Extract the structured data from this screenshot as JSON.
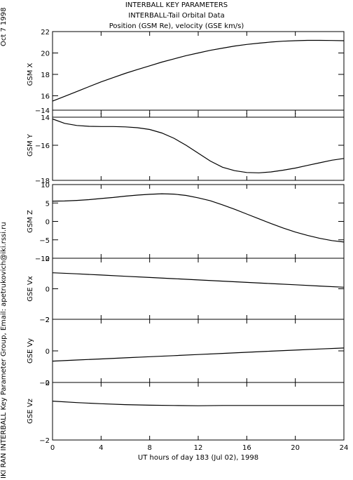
{
  "titles": [
    "INTERBALL KEY PARAMETERS",
    "INTERBALL-Tail Orbital Data",
    "Position (GSM Re), velocity (GSE km/s)"
  ],
  "side_date": "Oct  7 1998",
  "side_credit": "IKI RAN INTERBALL Key Parameter Group, Email: apetrukovich@iki.rssi.ru",
  "chart_data": {
    "type": "line",
    "xlabel": "UT hours of day 183 (Jul 02), 1998",
    "xlim": [
      0,
      24
    ],
    "xticks": [
      0,
      4,
      8,
      12,
      16,
      20,
      24
    ],
    "panels": [
      {
        "ylabel": "GSM X",
        "ylim": [
          14,
          22
        ],
        "yticks": [
          14,
          16,
          18,
          20,
          22
        ],
        "x": [
          0,
          1,
          2,
          3,
          4,
          5,
          6,
          7,
          8,
          9,
          10,
          11,
          12,
          13,
          14,
          15,
          16,
          17,
          18,
          19,
          20,
          21,
          22,
          23,
          24
        ],
        "values": [
          15.5,
          15.95,
          16.4,
          16.85,
          17.3,
          17.7,
          18.1,
          18.45,
          18.8,
          19.15,
          19.45,
          19.75,
          20.0,
          20.25,
          20.45,
          20.65,
          20.8,
          20.92,
          21.02,
          21.1,
          21.15,
          21.18,
          21.18,
          21.17,
          21.15
        ]
      },
      {
        "ylabel": "GSM Y",
        "ylim": [
          -18,
          -14
        ],
        "yticks": [
          -18,
          -16,
          -14
        ],
        "ytick_labels": [
          "−18",
          "−16",
          "−14"
        ],
        "x": [
          0,
          1,
          2,
          3,
          4,
          5,
          6,
          7,
          8,
          9,
          10,
          11,
          12,
          13,
          14,
          15,
          16,
          17,
          18,
          19,
          20,
          21,
          22,
          23,
          24
        ],
        "values": [
          -14.5,
          -14.75,
          -14.87,
          -14.92,
          -14.93,
          -14.93,
          -14.95,
          -15.0,
          -15.1,
          -15.3,
          -15.6,
          -16.0,
          -16.45,
          -16.9,
          -17.25,
          -17.45,
          -17.55,
          -17.57,
          -17.52,
          -17.42,
          -17.3,
          -17.15,
          -17.0,
          -16.85,
          -16.75
        ]
      },
      {
        "ylabel": "GSM Z",
        "ylim": [
          -10,
          10
        ],
        "yticks": [
          -10,
          -5,
          0,
          5,
          10
        ],
        "ytick_labels": [
          "−10",
          "−5",
          "0",
          "5",
          "10"
        ],
        "x": [
          0,
          1,
          2,
          3,
          4,
          5,
          6,
          7,
          8,
          9,
          10,
          11,
          12,
          13,
          14,
          15,
          16,
          17,
          18,
          19,
          20,
          21,
          22,
          23,
          24
        ],
        "values": [
          5.5,
          5.55,
          5.7,
          5.9,
          6.2,
          6.5,
          6.85,
          7.15,
          7.35,
          7.5,
          7.4,
          7.05,
          6.4,
          5.6,
          4.5,
          3.3,
          2.0,
          0.7,
          -0.6,
          -1.8,
          -2.9,
          -3.8,
          -4.6,
          -5.2,
          -5.6
        ]
      },
      {
        "ylabel": "GSE Vx",
        "ylim": [
          -2,
          2
        ],
        "yticks": [
          -2,
          0,
          2
        ],
        "ytick_labels": [
          "−2",
          "0",
          "2"
        ],
        "x": [
          0,
          2,
          4,
          6,
          8,
          10,
          12,
          14,
          16,
          18,
          20,
          22,
          24
        ],
        "values": [
          1.05,
          0.98,
          0.9,
          0.82,
          0.74,
          0.66,
          0.58,
          0.5,
          0.42,
          0.34,
          0.26,
          0.18,
          0.1
        ]
      },
      {
        "ylabel": "GSE Vy",
        "ylim": [
          -2,
          2
        ],
        "yticks": [
          -2,
          0,
          2
        ],
        "ytick_labels": [
          "−2",
          "0",
          "2"
        ],
        "x": [
          0,
          2,
          4,
          6,
          8,
          10,
          12,
          14,
          16,
          18,
          20,
          22,
          24
        ],
        "values": [
          -0.65,
          -0.58,
          -0.51,
          -0.44,
          -0.37,
          -0.3,
          -0.23,
          -0.16,
          -0.09,
          -0.02,
          0.05,
          0.12,
          0.18
        ]
      },
      {
        "ylabel": "GSE Vz",
        "ylim": [
          -2,
          0
        ],
        "yticks": [
          -2,
          0
        ],
        "ytick_labels": [
          "−2",
          "0"
        ],
        "x": [
          0,
          2,
          4,
          6,
          8,
          10,
          12,
          14,
          16,
          18,
          20,
          22,
          24
        ],
        "values": [
          -0.65,
          -0.7,
          -0.74,
          -0.77,
          -0.79,
          -0.8,
          -0.81,
          -0.8,
          -0.8,
          -0.8,
          -0.8,
          -0.8,
          -0.8
        ]
      }
    ]
  }
}
